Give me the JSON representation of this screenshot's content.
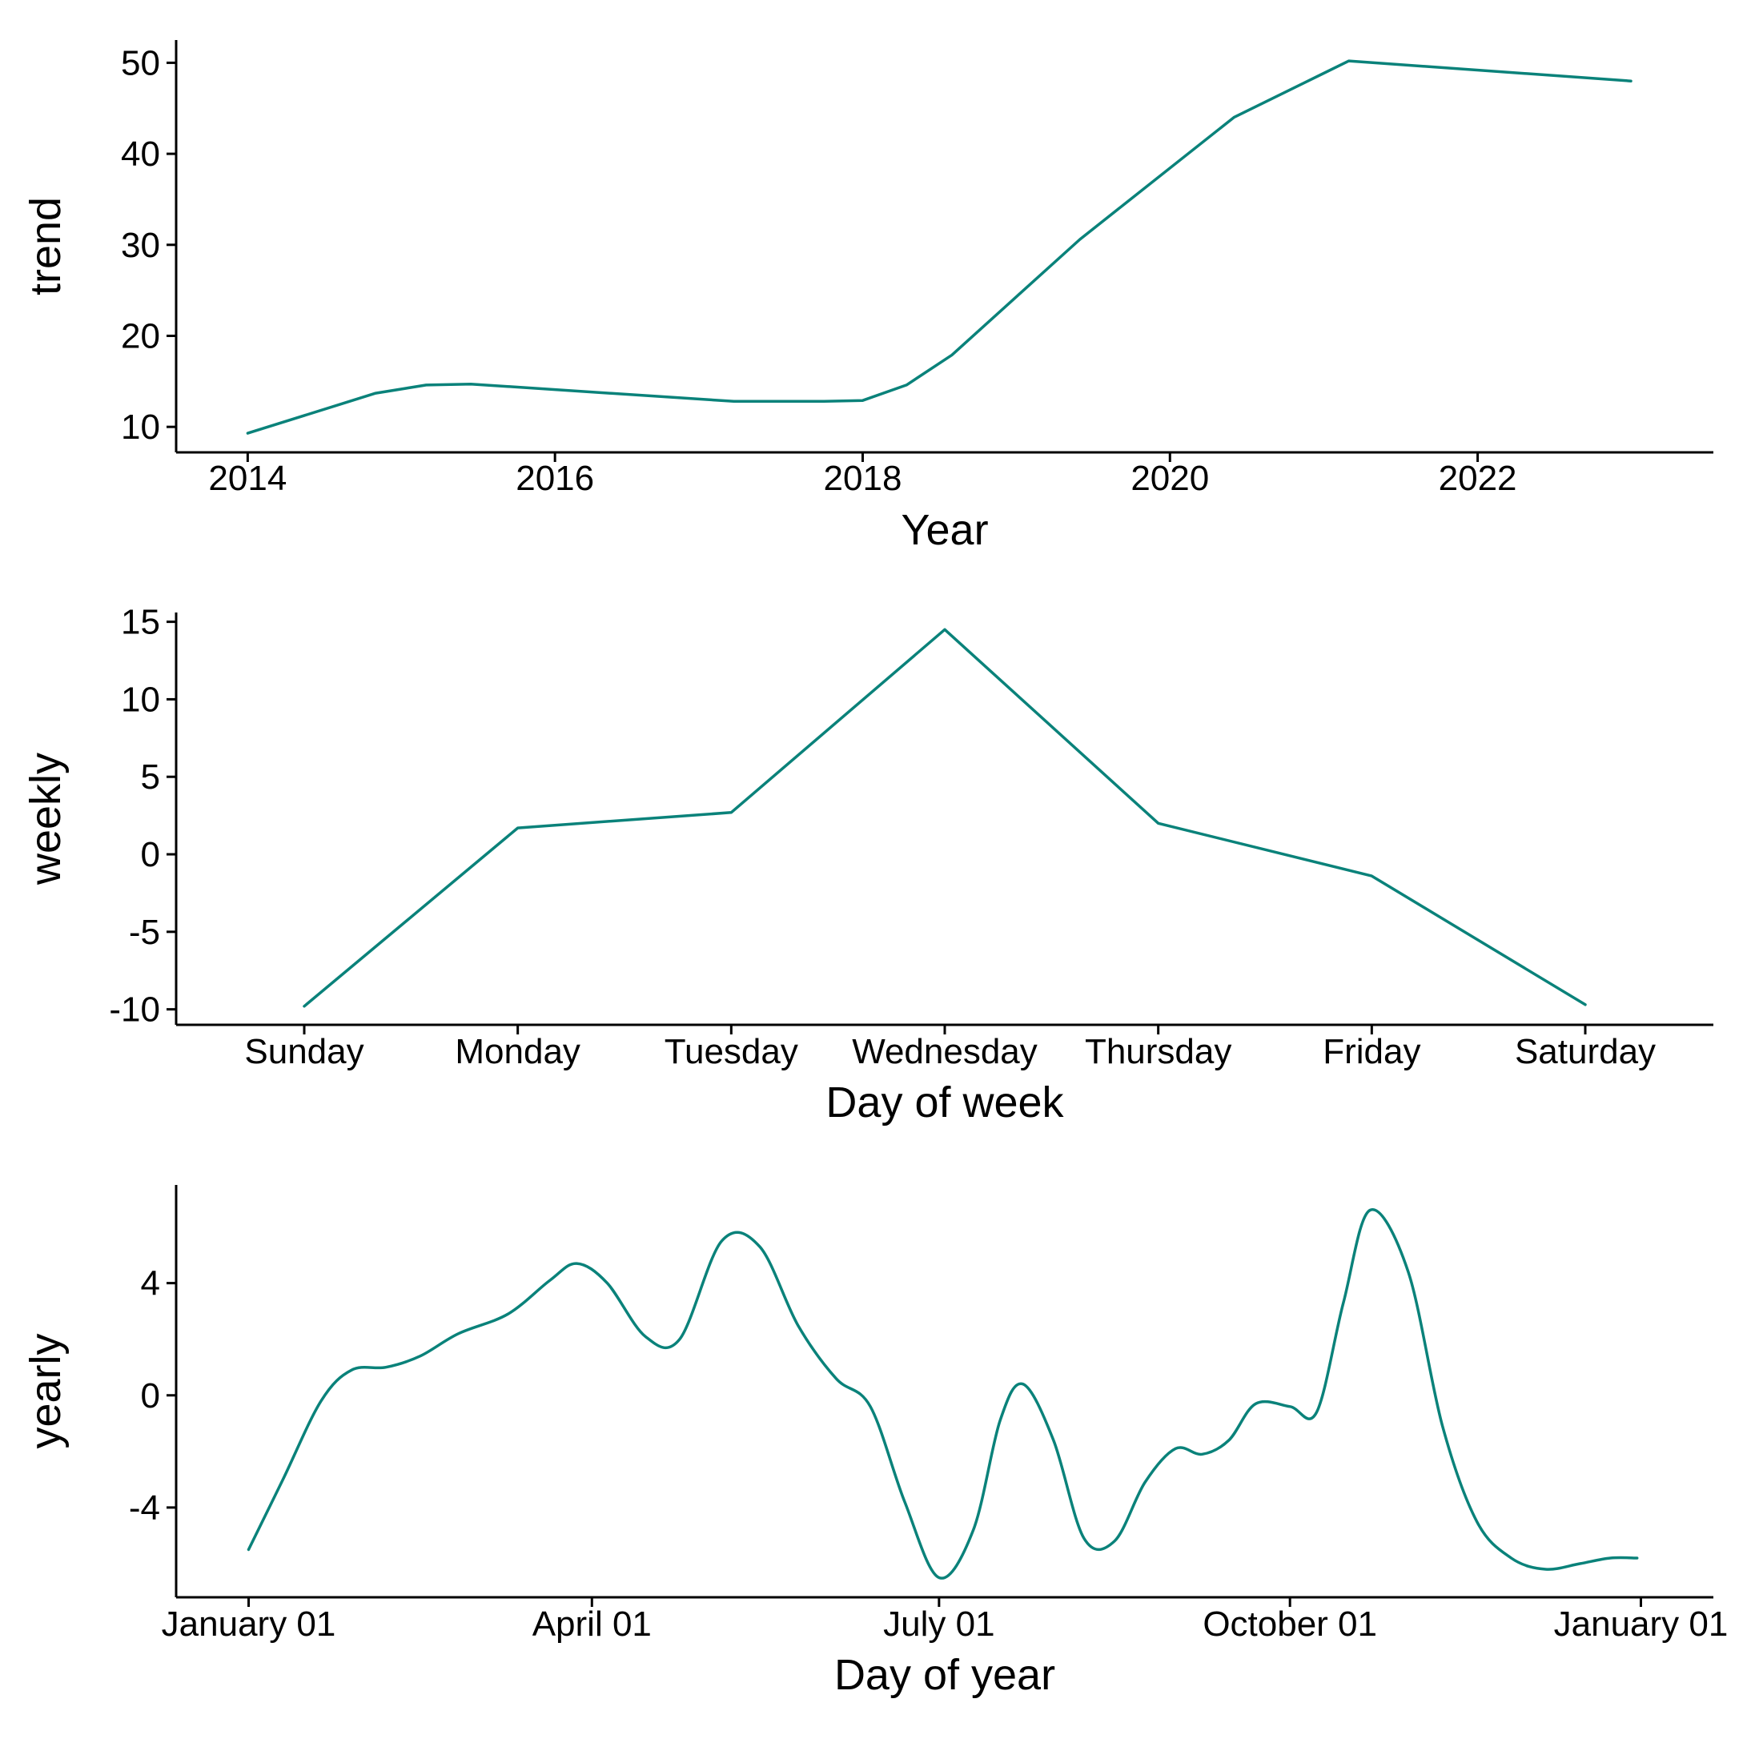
{
  "colors": {
    "series": "#0a827a",
    "axis": "#000000",
    "background": "#ffffff"
  },
  "chart_data": [
    {
      "type": "line",
      "xlabel": "Year",
      "ylabel": "trend",
      "x_scale": "time",
      "x_ticks": [
        "2014",
        "2016",
        "2018",
        "2020",
        "2022"
      ],
      "y_ticks": [
        "10",
        "20",
        "30",
        "40",
        "50"
      ],
      "xlim": [
        "2013-07-15",
        "2023-07-15"
      ],
      "ylim": [
        7.2,
        52.5
      ],
      "grid": false,
      "legend": "none",
      "x": [
        "2014-01-01",
        "2014-11-01",
        "2015-03-01",
        "2015-06-15",
        "2017-03-01",
        "2017-10-01",
        "2018-01-01",
        "2018-04-15",
        "2018-08-01",
        "2019-06-01",
        "2020-06-01",
        "2020-11-15",
        "2021-03-01",
        "2022-12-31"
      ],
      "y": [
        9.3,
        13.7,
        14.6,
        14.7,
        12.8,
        12.8,
        12.9,
        14.6,
        17.9,
        30.6,
        44.0,
        47.8,
        50.2,
        48.0
      ]
    },
    {
      "type": "line",
      "xlabel": "Day of week",
      "ylabel": "weekly",
      "categories": [
        "Sunday",
        "Monday",
        "Tuesday",
        "Wednesday",
        "Thursday",
        "Friday",
        "Saturday"
      ],
      "y_ticks": [
        "15",
        "10",
        "5",
        "0",
        "-5",
        "-10"
      ],
      "ylim": [
        -11,
        15.6
      ],
      "grid": false,
      "legend": "none",
      "values": [
        -9.8,
        1.7,
        2.7,
        14.5,
        2.0,
        -1.4,
        -9.7
      ]
    },
    {
      "type": "line",
      "xlabel": "Day of year",
      "ylabel": "yearly",
      "x_scale": "time",
      "x_ticks": [
        "January 01",
        "April 01",
        "July 01",
        "October 01",
        "January 01"
      ],
      "y_ticks": [
        "4",
        "0",
        "-4"
      ],
      "xlim": [
        "2017-12-13",
        "2019-01-20"
      ],
      "ylim": [
        -7.2,
        7.5
      ],
      "grid": false,
      "legend": "none",
      "x": [
        "2018-01-01",
        "2018-01-10",
        "2018-01-20",
        "2018-01-28",
        "2018-02-06",
        "2018-02-15",
        "2018-02-25",
        "2018-03-10",
        "2018-03-21",
        "2018-03-28",
        "2018-04-05",
        "2018-04-15",
        "2018-04-24",
        "2018-05-05",
        "2018-05-15",
        "2018-05-25",
        "2018-06-04",
        "2018-06-13",
        "2018-06-22",
        "2018-07-01",
        "2018-07-10",
        "2018-07-17",
        "2018-07-23",
        "2018-07-31",
        "2018-08-08",
        "2018-08-16",
        "2018-08-24",
        "2018-09-01",
        "2018-09-08",
        "2018-09-15",
        "2018-09-22",
        "2018-10-01",
        "2018-10-08",
        "2018-10-15",
        "2018-10-22",
        "2018-11-01",
        "2018-11-10",
        "2018-11-19",
        "2018-11-28",
        "2018-12-07",
        "2018-12-16",
        "2018-12-24",
        "2018-12-31"
      ],
      "y": [
        -5.5,
        -3.0,
        -0.2,
        0.9,
        1.0,
        1.4,
        2.2,
        2.9,
        4.1,
        4.7,
        4.0,
        2.1,
        2.0,
        5.5,
        5.3,
        2.5,
        0.6,
        -0.4,
        -3.8,
        -6.5,
        -4.8,
        -0.9,
        0.4,
        -1.6,
        -5.1,
        -5.2,
        -3.1,
        -1.9,
        -2.1,
        -1.6,
        -0.3,
        -0.4,
        -0.6,
        3.3,
        6.6,
        4.4,
        -1.1,
        -4.5,
        -5.8,
        -6.2,
        -6.0,
        -5.8,
        -5.8
      ]
    }
  ]
}
